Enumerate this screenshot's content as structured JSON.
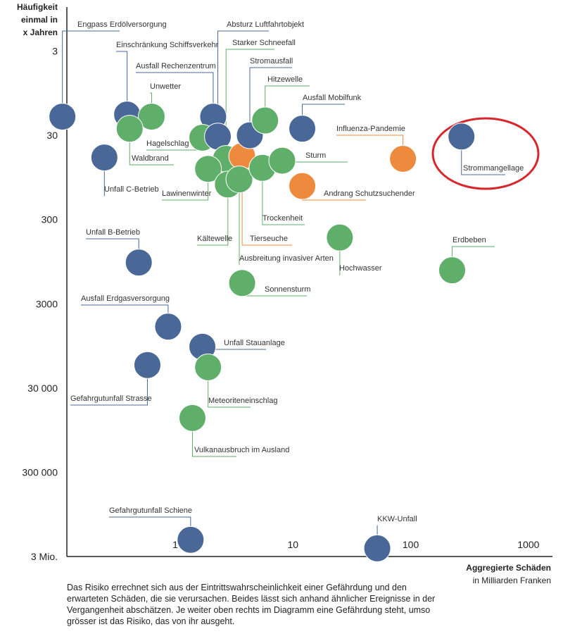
{
  "chart_data": {
    "type": "scatter",
    "y_label": [
      "Häufigkeit",
      "einmal in",
      "x Jahren"
    ],
    "x_label": [
      "Aggregierte Schäden",
      "in Milliarden Franken"
    ],
    "caption": "Das Risiko errechnet sich aus der Eintrittswahrscheinlichkeit einer Gefährdung und den erwarteten Schäden, die sie verursachen. Beides lässt sich anhand ähnlicher Ereignisse in der Vergangenheit abschätzen. Je weiter oben rechts im Diagramm eine Gefährdung steht, umso grösser ist das Risiko, das von ihr ausgeht.",
    "x_log": true,
    "y_log": true,
    "y_inverted": true,
    "xlim": [
      0.12,
      1600
    ],
    "ylim": [
      0.9,
      3000000
    ],
    "xticks": [
      1,
      10,
      100,
      1000
    ],
    "yticks": [
      3,
      30,
      300,
      3000,
      {
        "value": 30000,
        "label": "30 000"
      },
      {
        "value": 300000,
        "label": "300 000"
      },
      {
        "value": 3000000,
        "label": "3 Mio."
      }
    ],
    "labels": [
      "Engpass Erdölversorgung",
      "Einschränkung Schiffsverkehr",
      "Unwetter",
      "Waldbrand",
      "Unfall C-Betrieb",
      "Ausfall Rechenzentrum",
      "Hagelschlag",
      "Absturz Luftfahrtobjekt",
      "Starker Schneefall",
      "Lawinenwinter",
      "Kältewelle",
      "Tierseuche",
      "Ausbreitung invasiver Arten",
      "Stromausfall",
      "Hitzewelle",
      "Trockenheit",
      "Sturm",
      "Ausfall Mobilfunk",
      "Influenza-Pandemie",
      "Andrang Schutzsuchender",
      "Strommangellage",
      "Unfall B-Betrieb",
      "Hochwasser",
      "Erdbeben",
      "Sonnensturm",
      "Ausfall Erdgasversorgung",
      "Unfall Stauanlage",
      "Gefahrgutunfall Strasse",
      "Meteoriteneinschlag",
      "Vulkanausbruch im Ausland",
      "Gefahrgutunfall Schiene",
      "KKW-Unfall"
    ],
    "x": [
      0.11,
      0.39,
      0.63,
      0.41,
      0.25,
      2.1,
      1.7,
      2.3,
      2.7,
      1.9,
      2.8,
      3.7,
      3.5,
      4.3,
      5.8,
      5.5,
      8.1,
      12,
      86,
      12,
      270,
      0.49,
      25,
      225,
      3.7,
      0.87,
      1.7,
      0.58,
      1.9,
      1.4,
      1.35,
      52
    ],
    "y": [
      18,
      17,
      18,
      25,
      55,
      18,
      32,
      31,
      57,
      75,
      115,
      53,
      100,
      30,
      20,
      73,
      60,
      25,
      57,
      120,
      31,
      970,
      490,
      1200,
      1700,
      5600,
      9700,
      16000,
      17000,
      68000,
      1900000,
      2400000
    ],
    "colors": [
      "#4a6897",
      "#4a6897",
      "#5fae6a",
      "#5fae6a",
      "#4a6897",
      "#4a6897",
      "#5fae6a",
      "#4a6897",
      "#5fae6a",
      "#5fae6a",
      "#5fae6a",
      "#ee8a3e",
      "#5fae6a",
      "#4a6897",
      "#5fae6a",
      "#5fae6a",
      "#5fae6a",
      "#4a6897",
      "#ee8a3e",
      "#ee8a3e",
      "#4a6897",
      "#4a6897",
      "#5fae6a",
      "#5fae6a",
      "#5fae6a",
      "#4a6897",
      "#4a6897",
      "#4a6897",
      "#5fae6a",
      "#5fae6a",
      "#4a6897",
      "#4a6897"
    ]
  }
}
